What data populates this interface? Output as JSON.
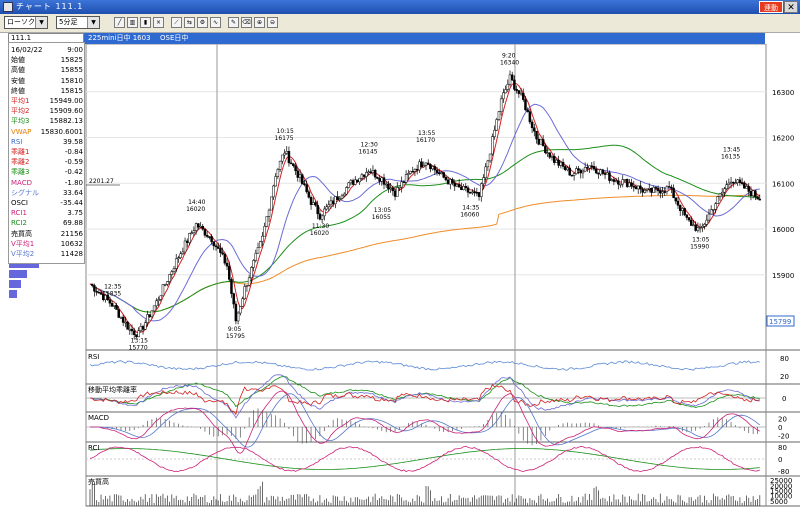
{
  "window": {
    "title": "チャート  111.1",
    "link_label": "連動",
    "close_label": "✕"
  },
  "toolbar": {
    "chart_type": "ローソク",
    "interval": "5分足",
    "tools": [
      {
        "icon": "line-chart-icon"
      },
      {
        "icon": "bar-chart-icon"
      },
      {
        "icon": "candle-chart-icon"
      },
      {
        "icon": "point-figure-icon"
      },
      {
        "icon": "trend-icon"
      },
      {
        "icon": "compare-icon"
      },
      {
        "icon": "settings-icon"
      },
      {
        "icon": "indicator-icon"
      },
      {
        "icon": "pencil-icon"
      },
      {
        "icon": "eraser-icon"
      },
      {
        "icon": "zoom-in-icon"
      },
      {
        "icon": "zoom-out-icon"
      }
    ]
  },
  "symbol": {
    "code": "111.1",
    "series_label": "225mini日中 1603",
    "exchange_label": "OSE日中"
  },
  "info_panel": {
    "rows": [
      {
        "label": "16/02/22",
        "value": "9:00",
        "color": "#000000"
      },
      {
        "label": "始値",
        "value": "15825",
        "color": "#000000"
      },
      {
        "label": "高値",
        "value": "15855",
        "color": "#000000"
      },
      {
        "label": "安値",
        "value": "15810",
        "color": "#000000"
      },
      {
        "label": "終値",
        "value": "15815",
        "color": "#000000"
      },
      {
        "label": "平均1",
        "value": "15949.00",
        "color": "#d22222"
      },
      {
        "label": "平均2",
        "value": "15909.60",
        "color": "#d22222"
      },
      {
        "label": "平均3",
        "value": "15882.13",
        "color": "#1a8f1a"
      },
      {
        "label": "VWAP",
        "value": "15830.6001",
        "color": "#e07b00"
      },
      {
        "label": "RSI",
        "value": "39.58",
        "color": "#3366cc"
      },
      {
        "label": "乖離1",
        "value": "-0.84",
        "color": "#d22222"
      },
      {
        "label": "乖離2",
        "value": "-0.59",
        "color": "#d22222"
      },
      {
        "label": "乖離3",
        "value": "-0.42",
        "color": "#1a8f1a"
      },
      {
        "label": "MACD",
        "value": "-1.80",
        "color": "#cc2277"
      },
      {
        "label": "シグナル",
        "value": "33.64",
        "color": "#5577cc"
      },
      {
        "label": "OSCI",
        "value": "-35.44",
        "color": "#000000"
      },
      {
        "label": "RCI1",
        "value": "3.75",
        "color": "#cc2277"
      },
      {
        "label": "RCI2",
        "value": "69.88",
        "color": "#1a8f1a"
      },
      {
        "label": "売買高",
        "value": "21156",
        "color": "#000000"
      },
      {
        "label": "V平均1",
        "value": "10632",
        "color": "#cc2277"
      },
      {
        "label": "V平均2",
        "value": "11428",
        "color": "#5577cc"
      }
    ]
  },
  "axis": {
    "price_ticks": [
      "16300",
      "16200",
      "16100",
      "16000",
      "15900"
    ],
    "current_price": "15799",
    "rsi_ticks": [
      "80",
      "20"
    ],
    "dev_ticks": [
      "0"
    ],
    "macd_ticks": [
      "20",
      "0",
      "-20"
    ],
    "rci_ticks": [
      "80",
      "0",
      "-80"
    ],
    "vol_ticks": [
      "25000",
      "20000",
      "15000",
      "10000",
      "5000"
    ]
  },
  "annotations": [
    {
      "time": "12:35",
      "price": "15835"
    },
    {
      "time": "13:15",
      "price": "15770"
    },
    {
      "time": "14:40",
      "price": "16020"
    },
    {
      "time": "9:05",
      "price": "15795"
    },
    {
      "time": "10:15",
      "price": "16175"
    },
    {
      "time": "11:30",
      "price": "16020"
    },
    {
      "time": "12:30",
      "price": "16145"
    },
    {
      "time": "13:05",
      "price": "16055"
    },
    {
      "time": "13:55",
      "price": "16170"
    },
    {
      "time": "14:35",
      "price": "16060"
    },
    {
      "time": "9:20",
      "price": "16340"
    },
    {
      "time": "13:05",
      "price": "15990"
    },
    {
      "time": "13:45",
      "price": "16135"
    }
  ],
  "marker_label": "2201.27",
  "indicators": {
    "rsi_label": "RSI",
    "dev_label": "移動平均乖離率",
    "macd_label": "MACD",
    "rci_label": "RCI",
    "vol_label": "売買高"
  },
  "colors": {
    "title_bg": "#2b5ec4",
    "accent": "#2f6ad0",
    "up": "#ffffff",
    "down": "#000000",
    "ma1": "#d22222",
    "ma2": "#6b6bd6",
    "ma3": "#1a8f1a",
    "vwap": "#f08c28"
  },
  "chart_data": {
    "type": "candlestick",
    "ylim": [
      15740,
      16400
    ],
    "annotated_points": [
      {
        "time": "12:35",
        "price": 15835
      },
      {
        "time": "13:15",
        "price": 15770
      },
      {
        "time": "14:40",
        "price": 16020
      },
      {
        "time": "9:05",
        "price": 15795
      },
      {
        "time": "10:15",
        "price": 16175
      },
      {
        "time": "11:30",
        "price": 16020
      },
      {
        "time": "12:30",
        "price": 16145
      },
      {
        "time": "13:05",
        "price": 16055
      },
      {
        "time": "13:55",
        "price": 16170
      },
      {
        "time": "14:35",
        "price": 16060
      },
      {
        "time": "9:20",
        "price": 16340
      },
      {
        "time": "13:05",
        "price": 15990
      },
      {
        "time": "13:45",
        "price": 16135
      }
    ]
  }
}
